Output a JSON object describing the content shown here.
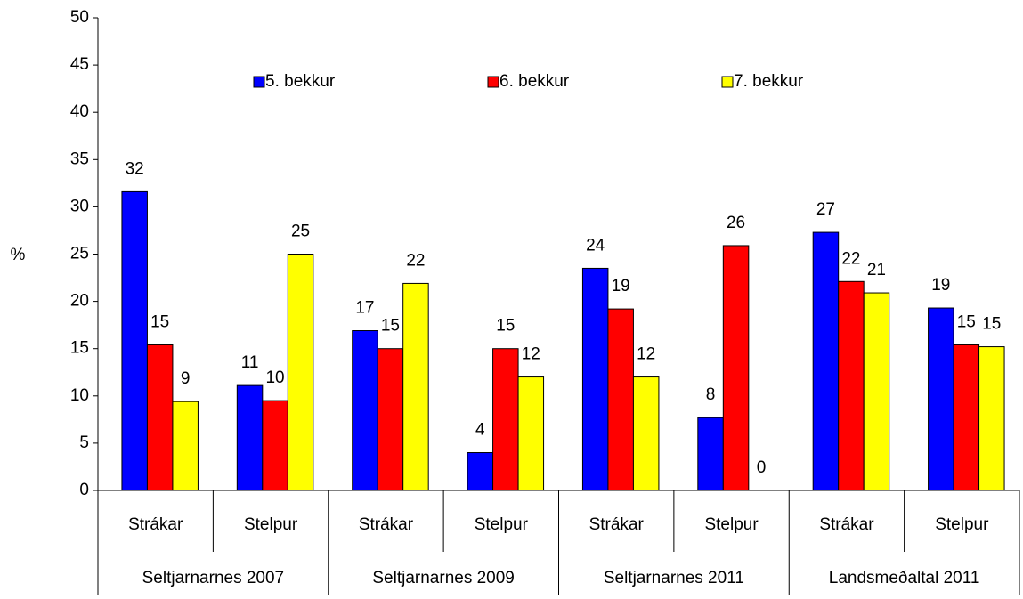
{
  "chart_data": {
    "type": "bar",
    "y_label": "%",
    "categories": [
      "Strákar",
      "Stelpur",
      "Strákar",
      "Stelpur",
      "Strákar",
      "Stelpur",
      "Strákar",
      "Stelpur"
    ],
    "groups": [
      "Seltjarnarnes 2007",
      "Seltjarnarnes 2009",
      "Seltjarnarnes 2011",
      "Landsmeðaltal 2011"
    ],
    "series": [
      {
        "name": "5. bekkur",
        "color": "#0000ff",
        "values": [
          31.6,
          11.1,
          16.9,
          4.0,
          23.5,
          7.7,
          27.3,
          19.3
        ],
        "value_labels": [
          "32",
          "11",
          "17",
          "4",
          "24",
          "8",
          "27",
          "19"
        ]
      },
      {
        "name": "6. bekkur",
        "color": "#ff0000",
        "values": [
          15.4,
          9.5,
          15.0,
          15.0,
          19.2,
          25.9,
          22.1,
          15.4
        ],
        "value_labels": [
          "15",
          "10",
          "15",
          "15",
          "19",
          "26",
          "22",
          "15"
        ]
      },
      {
        "name": "7. bekkur",
        "color": "#ffff00",
        "values": [
          9.4,
          25.0,
          21.9,
          12.0,
          12.0,
          0,
          20.9,
          15.2
        ],
        "value_labels": [
          "9",
          "25",
          "22",
          "12",
          "12",
          "0",
          "21",
          "15"
        ]
      }
    ],
    "ylim": [
      0,
      50
    ],
    "yticks": [
      0,
      5,
      10,
      15,
      20,
      25,
      30,
      35,
      40,
      45,
      50
    ],
    "legend": "top"
  }
}
